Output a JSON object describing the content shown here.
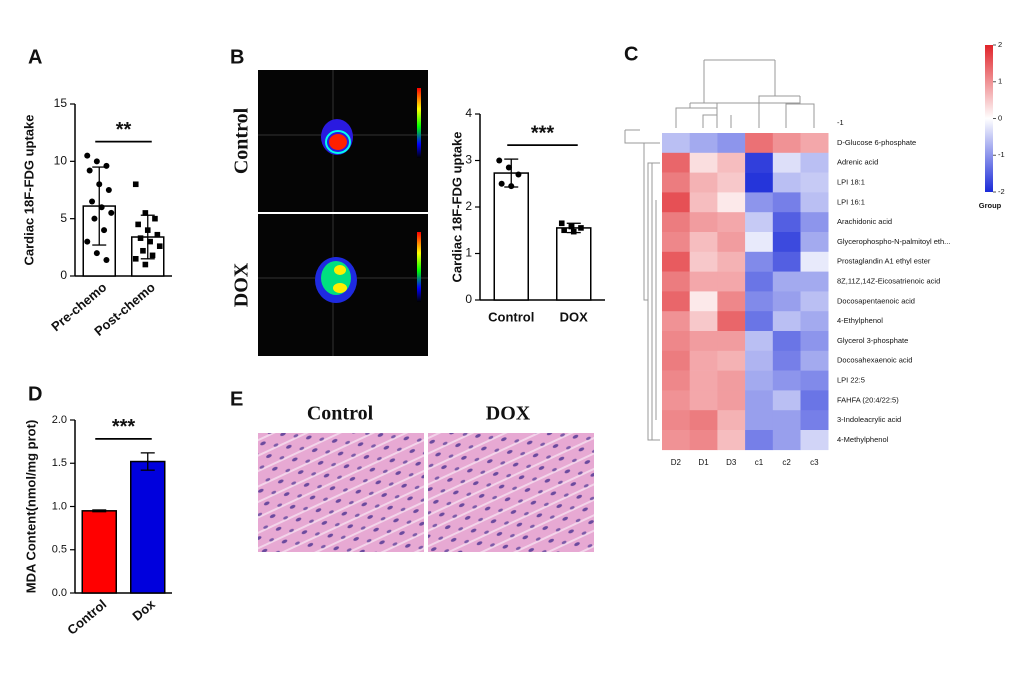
{
  "chart_data": [
    {
      "type": "bar",
      "panel": "A",
      "ylabel": "Cardiac 18F-FDG uptake",
      "categories": [
        "Pre-chemo",
        "Post-chemo"
      ],
      "values": [
        6.1,
        3.4
      ],
      "errors": [
        3.4,
        1.9
      ],
      "colors": [
        "#ffffff",
        "#ffffff"
      ],
      "points": [
        [
          10.5,
          10,
          9.6,
          9.2,
          8,
          7.5,
          6.5,
          6,
          5.5,
          5,
          4,
          3,
          2,
          1.4
        ],
        [
          8,
          5.5,
          5,
          4.5,
          4,
          3.6,
          3.3,
          3,
          2.6,
          2.2,
          1.8,
          1.5,
          1
        ]
      ],
      "significance": "**",
      "ylim": [
        0,
        15
      ],
      "yticks": [
        0,
        5,
        10,
        15
      ]
    },
    {
      "type": "bar",
      "ylabel": "Cardiac 18F-FDG uptake",
      "categories": [
        "Control",
        "DOX"
      ],
      "values": [
        2.73,
        1.55
      ],
      "errors": [
        0.3,
        0.1
      ],
      "colors": [
        "#ffffff",
        "#ffffff"
      ],
      "points": [
        [
          3.0,
          2.85,
          2.7,
          2.5,
          2.45
        ],
        [
          1.65,
          1.58,
          1.55,
          1.5,
          1.47
        ]
      ],
      "significance": "***",
      "ylim": [
        0,
        4
      ],
      "yticks": [
        0,
        1,
        2,
        3,
        4
      ]
    },
    {
      "type": "heatmap",
      "panel": "C",
      "group_row_label": "-1",
      "rows": [
        "D-Glucose 6-phosphate",
        "Adrenic acid",
        "LPI 18:1",
        "LPI 16:1",
        "Arachidonic acid",
        "Glycerophospho-N-palmitoyl eth...",
        "Prostaglandin A1 ethyl ester",
        "8Z,11Z,14Z-Eicosatrienoic acid",
        "Docosapentaenoic acid",
        "4-Ethylphenol",
        "Glycerol 3-phosphate",
        "Docosahexaenoic acid",
        "LPI 22:5",
        "FAHFA (20:4/22:5)",
        "3-Indoleacrylic acid",
        "4-Methylphenol"
      ],
      "columns": [
        "D2",
        "D1",
        "D3",
        "c1",
        "c2",
        "c3"
      ],
      "values": [
        [
          -0.6,
          -0.8,
          -1.0,
          1.3,
          1.0,
          0.8
        ],
        [
          1.4,
          0.3,
          0.6,
          -1.8,
          -0.3,
          -0.6
        ],
        [
          1.2,
          0.7,
          0.5,
          -1.9,
          -0.6,
          -0.5
        ],
        [
          1.6,
          0.6,
          0.2,
          -1.0,
          -1.2,
          -0.6
        ],
        [
          1.2,
          0.9,
          0.8,
          -0.5,
          -1.5,
          -1.0
        ],
        [
          1.1,
          0.6,
          0.9,
          -0.2,
          -1.7,
          -0.8
        ],
        [
          1.5,
          0.5,
          0.7,
          -1.1,
          -1.5,
          -0.2
        ],
        [
          1.2,
          0.8,
          0.8,
          -1.3,
          -0.8,
          -0.8
        ],
        [
          1.4,
          0.2,
          1.1,
          -1.1,
          -0.9,
          -0.6
        ],
        [
          1.0,
          0.5,
          1.4,
          -1.3,
          -0.6,
          -0.8
        ],
        [
          1.1,
          0.9,
          0.9,
          -0.6,
          -1.3,
          -1.0
        ],
        [
          1.2,
          0.8,
          0.7,
          -0.7,
          -1.2,
          -0.8
        ],
        [
          1.1,
          0.8,
          0.9,
          -0.8,
          -1.0,
          -1.1
        ],
        [
          1.0,
          0.8,
          0.9,
          -0.9,
          -0.6,
          -1.3
        ],
        [
          1.1,
          1.2,
          0.7,
          -0.9,
          -0.9,
          -1.2
        ],
        [
          1.0,
          1.1,
          0.6,
          -1.2,
          -0.9,
          -0.4
        ]
      ],
      "zlim": [
        -2,
        2
      ],
      "colorbar_ticks": [
        2,
        1,
        0,
        -1,
        -2
      ],
      "colorbar_label": "Group",
      "low_color": "#1a2ad8",
      "high_color": "#e0242a"
    },
    {
      "type": "bar",
      "panel": "D",
      "ylabel": "MDA Content(nmol/mg prot)",
      "categories": [
        "Control",
        "Dox"
      ],
      "values": [
        0.95,
        1.52
      ],
      "errors": [
        0.01,
        0.1
      ],
      "colors": [
        "#ff0000",
        "#0000dd"
      ],
      "significance": "***",
      "ylim": [
        0,
        2
      ],
      "yticks": [
        {
          "value": 0,
          "label": "0.0"
        },
        {
          "value": 0.5,
          "label": "0.5"
        },
        {
          "value": 1,
          "label": "1.0"
        },
        {
          "value": 1.5,
          "label": "1.5"
        },
        {
          "value": 2,
          "label": "2.0"
        }
      ]
    }
  ],
  "images": {
    "B": {
      "panel": "B",
      "rows": [
        "Control",
        "DOX"
      ]
    },
    "E": {
      "panel": "E",
      "columns": [
        "Control",
        "DOX"
      ]
    }
  }
}
